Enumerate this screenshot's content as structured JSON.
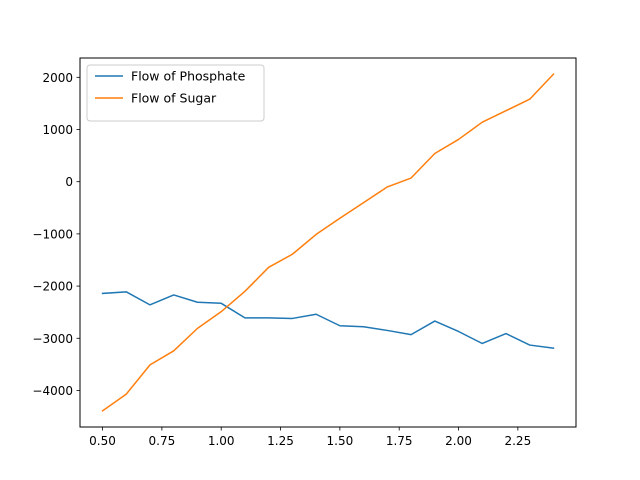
{
  "chart_data": {
    "type": "line",
    "title": "",
    "xlabel": "",
    "ylabel": "",
    "xlim": [
      0.405,
      2.495
    ],
    "ylim": [
      -4700,
      2370
    ],
    "xticks": [
      0.5,
      0.75,
      1.0,
      1.25,
      1.5,
      1.75,
      2.0,
      2.25
    ],
    "xtick_labels": [
      "0.50",
      "0.75",
      "1.00",
      "1.25",
      "1.50",
      "1.75",
      "2.00",
      "2.25"
    ],
    "yticks": [
      -4000,
      -3000,
      -2000,
      -1000,
      0,
      1000,
      2000
    ],
    "ytick_labels": [
      "−4000",
      "−3000",
      "−2000",
      "−1000",
      "0",
      "1000",
      "2000"
    ],
    "grid": false,
    "legend_position": "top-left",
    "x": [
      0.5,
      0.6,
      0.7,
      0.8,
      0.9,
      1.0,
      1.1,
      1.2,
      1.3,
      1.4,
      1.5,
      1.6,
      1.7,
      1.8,
      1.9,
      2.0,
      2.1,
      2.2,
      2.3,
      2.4
    ],
    "series": [
      {
        "name": "Flow of Phosphate",
        "color": "#1f77b4",
        "values": [
          -2140,
          -2110,
          -2360,
          -2170,
          -2310,
          -2330,
          -2610,
          -2610,
          -2620,
          -2540,
          -2760,
          -2780,
          -2850,
          -2930,
          -2670,
          -2870,
          -3100,
          -2910,
          -3130,
          -3190
        ]
      },
      {
        "name": "Flow of Sugar",
        "color": "#ff7f0e",
        "values": [
          -4390,
          -4070,
          -3510,
          -3240,
          -2810,
          -2490,
          -2100,
          -1640,
          -1390,
          -1010,
          -700,
          -400,
          -100,
          70,
          540,
          810,
          1140,
          1360,
          1580,
          2060
        ]
      }
    ]
  }
}
